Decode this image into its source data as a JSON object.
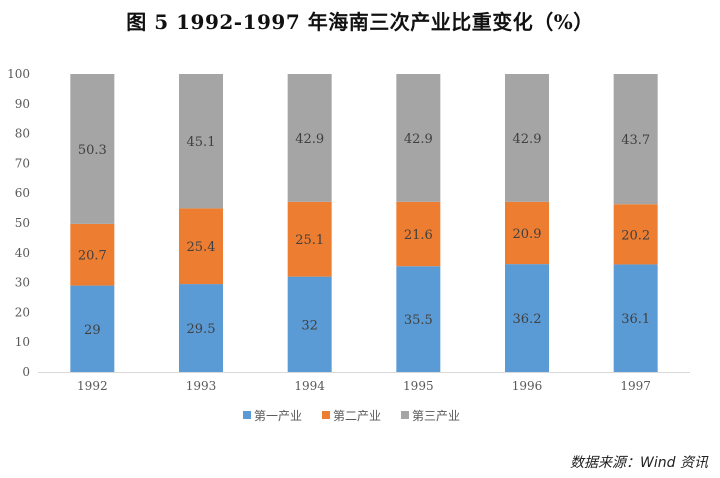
{
  "title": "图 5    1992-1997 年海南三次产业比重变化（%）",
  "source": "数据来源：Wind 资讯",
  "chart_data": {
    "type": "bar",
    "stacked": true,
    "categories": [
      "1992",
      "1993",
      "1994",
      "1995",
      "1996",
      "1997"
    ],
    "series": [
      {
        "name": "第一产业",
        "color": "#5B9BD5",
        "values": [
          29,
          29.5,
          32,
          35.5,
          36.2,
          36.1
        ]
      },
      {
        "name": "第二产业",
        "color": "#ED7D31",
        "values": [
          20.7,
          25.4,
          25.1,
          21.6,
          20.9,
          20.2
        ]
      },
      {
        "name": "第三产业",
        "color": "#A5A5A5",
        "values": [
          50.3,
          45.1,
          42.9,
          42.9,
          42.9,
          43.7
        ]
      }
    ],
    "ylim": [
      0,
      100
    ],
    "yticks": [
      0,
      10,
      20,
      30,
      40,
      50,
      60,
      70,
      80,
      90,
      100
    ],
    "xlabel": "",
    "ylabel": "",
    "grid": false,
    "legend_position": "bottom"
  }
}
